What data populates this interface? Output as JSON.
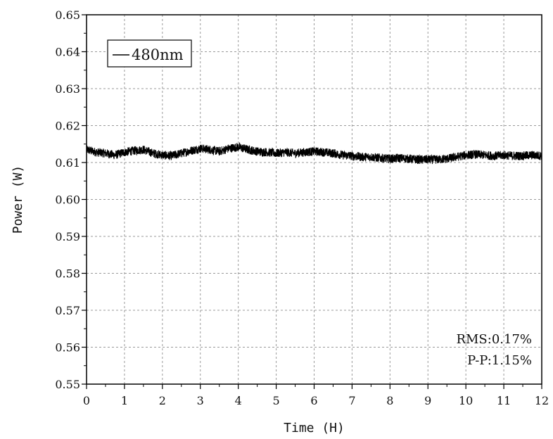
{
  "chart_data": {
    "type": "line",
    "xlabel": "Time (H)",
    "ylabel": "Power (W)",
    "xlim": [
      0,
      12
    ],
    "ylim": [
      0.55,
      0.65
    ],
    "x_ticks": [
      "0",
      "1",
      "2",
      "3",
      "4",
      "5",
      "6",
      "7",
      "8",
      "9",
      "10",
      "11",
      "12"
    ],
    "y_ticks": [
      "0.55",
      "0.56",
      "0.57",
      "0.58",
      "0.59",
      "0.60",
      "0.61",
      "0.62",
      "0.63",
      "0.64",
      "0.65"
    ],
    "grid": true,
    "legend": {
      "label": "480nm",
      "position": "top-left"
    },
    "annotations": [
      "RMS:0.17%",
      "P-P:1.15%"
    ],
    "series": [
      {
        "name": "480nm",
        "color": "#000000",
        "x": [
          0,
          0.25,
          0.5,
          0.75,
          1.0,
          1.25,
          1.5,
          1.75,
          2.0,
          2.25,
          2.5,
          2.75,
          3.0,
          3.25,
          3.5,
          3.75,
          4.0,
          4.25,
          4.5,
          4.75,
          5.0,
          5.25,
          5.5,
          5.75,
          6.0,
          6.25,
          6.5,
          6.75,
          7.0,
          7.25,
          7.5,
          7.75,
          8.0,
          8.25,
          8.5,
          8.75,
          9.0,
          9.25,
          9.5,
          9.75,
          10.0,
          10.25,
          10.5,
          10.75,
          11.0,
          11.25,
          11.5,
          11.75,
          12.0
        ],
        "y": [
          0.6135,
          0.6128,
          0.6125,
          0.612,
          0.6128,
          0.6132,
          0.6135,
          0.6125,
          0.612,
          0.6118,
          0.6125,
          0.6132,
          0.6138,
          0.6135,
          0.613,
          0.6138,
          0.6142,
          0.6135,
          0.613,
          0.6128,
          0.6125,
          0.6128,
          0.6125,
          0.6128,
          0.613,
          0.6128,
          0.6125,
          0.612,
          0.6118,
          0.6115,
          0.6115,
          0.6112,
          0.611,
          0.6112,
          0.611,
          0.6108,
          0.6108,
          0.6108,
          0.611,
          0.6115,
          0.612,
          0.6122,
          0.612,
          0.6118,
          0.612,
          0.6118,
          0.6118,
          0.612,
          0.6118
        ],
        "noise_amplitude": 0.0012
      }
    ]
  }
}
